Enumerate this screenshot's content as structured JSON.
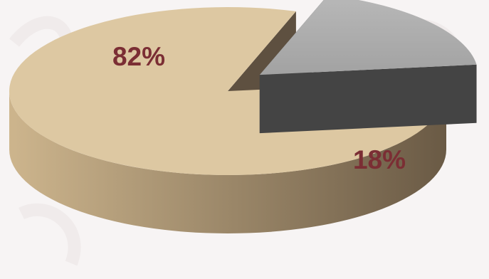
{
  "chart_data": {
    "type": "pie",
    "style": "3d-exploded",
    "slices": [
      {
        "label": "82%",
        "value": 82,
        "color": "#ddc8a2",
        "side_color_light": "#cdb58d",
        "side_color_dark": "#6a5a45",
        "exploded": false
      },
      {
        "label": "18%",
        "value": 18,
        "color": "#a9a9a9",
        "side_color_light": "#5a5a5a",
        "side_color_dark": "#3c3c3c",
        "exploded": true
      }
    ],
    "label_color": "#7b2e34",
    "legend": "none"
  }
}
